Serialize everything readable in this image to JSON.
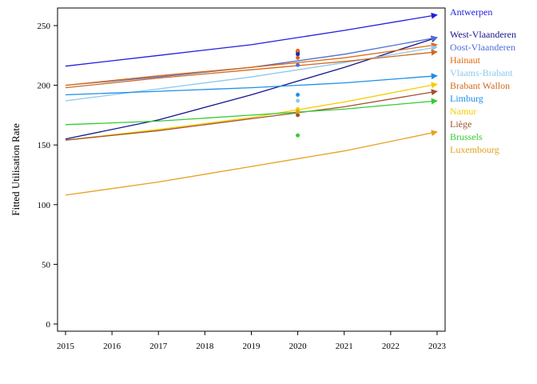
{
  "chart_data": {
    "type": "line",
    "title": "",
    "xlabel": "",
    "ylabel": "Fitted Utilisation Rate",
    "xlim": [
      2015,
      2023
    ],
    "ylim": [
      0,
      265
    ],
    "x_ticks": [
      2015,
      2016,
      2017,
      2018,
      2019,
      2020,
      2021,
      2022,
      2023
    ],
    "y_ticks": [
      0,
      50,
      100,
      150,
      200,
      250
    ],
    "grid": false,
    "legend_placement": "right",
    "series": [
      {
        "name": "Antwerpen",
        "color": "#1f1fe0",
        "values": [
          [
            2015,
            216
          ],
          [
            2017,
            225
          ],
          [
            2019,
            234
          ],
          [
            2021,
            246
          ],
          [
            2023,
            259
          ]
        ],
        "point_2020": 226
      },
      {
        "name": "West-Vlaanderen",
        "color": "#14148c",
        "values": [
          [
            2015,
            155
          ],
          [
            2017,
            171
          ],
          [
            2019,
            192
          ],
          [
            2021,
            215
          ],
          [
            2023,
            240
          ]
        ],
        "point_2020": 228
      },
      {
        "name": "Oost-Vlaanderen",
        "color": "#4a6fd9",
        "values": [
          [
            2015,
            200
          ],
          [
            2017,
            207
          ],
          [
            2019,
            215
          ],
          [
            2021,
            226
          ],
          [
            2023,
            240
          ]
        ],
        "point_2020": 217
      },
      {
        "name": "Hainaut",
        "color": "#e06b10",
        "values": [
          [
            2015,
            200
          ],
          [
            2017,
            208
          ],
          [
            2019,
            215
          ],
          [
            2021,
            223
          ],
          [
            2023,
            234
          ]
        ],
        "point_2020": 229
      },
      {
        "name": "Vlaams-Brabant",
        "color": "#8ec8f0",
        "values": [
          [
            2015,
            187
          ],
          [
            2017,
            197
          ],
          [
            2019,
            207
          ],
          [
            2021,
            219
          ],
          [
            2023,
            232
          ]
        ],
        "point_2020": 187
      },
      {
        "name": "Brabant Wallon",
        "color": "#d2691e",
        "values": [
          [
            2015,
            198
          ],
          [
            2017,
            206
          ],
          [
            2019,
            213
          ],
          [
            2021,
            220
          ],
          [
            2023,
            228
          ]
        ],
        "point_2020": 223
      },
      {
        "name": "Limburg",
        "color": "#1e8fe8",
        "values": [
          [
            2015,
            192
          ],
          [
            2017,
            195
          ],
          [
            2019,
            198
          ],
          [
            2021,
            202
          ],
          [
            2023,
            208
          ]
        ],
        "point_2020": 192
      },
      {
        "name": "Namur",
        "color": "#f5cc00",
        "values": [
          [
            2015,
            154
          ],
          [
            2017,
            163
          ],
          [
            2019,
            173
          ],
          [
            2021,
            186
          ],
          [
            2023,
            201
          ]
        ],
        "point_2020": 180
      },
      {
        "name": "Liège",
        "color": "#a0522d",
        "values": [
          [
            2015,
            154
          ],
          [
            2017,
            162
          ],
          [
            2019,
            172
          ],
          [
            2021,
            182
          ],
          [
            2023,
            195
          ]
        ],
        "point_2020": 175
      },
      {
        "name": "Brussels",
        "color": "#33cc33",
        "values": [
          [
            2015,
            167
          ],
          [
            2017,
            170
          ],
          [
            2019,
            175
          ],
          [
            2021,
            180
          ],
          [
            2023,
            187
          ]
        ],
        "point_2020": 158
      },
      {
        "name": "Luxembourg",
        "color": "#e6a020",
        "values": [
          [
            2015,
            108
          ],
          [
            2017,
            119
          ],
          [
            2019,
            132
          ],
          [
            2021,
            145
          ],
          [
            2023,
            161
          ]
        ],
        "point_2020": 178
      }
    ]
  }
}
